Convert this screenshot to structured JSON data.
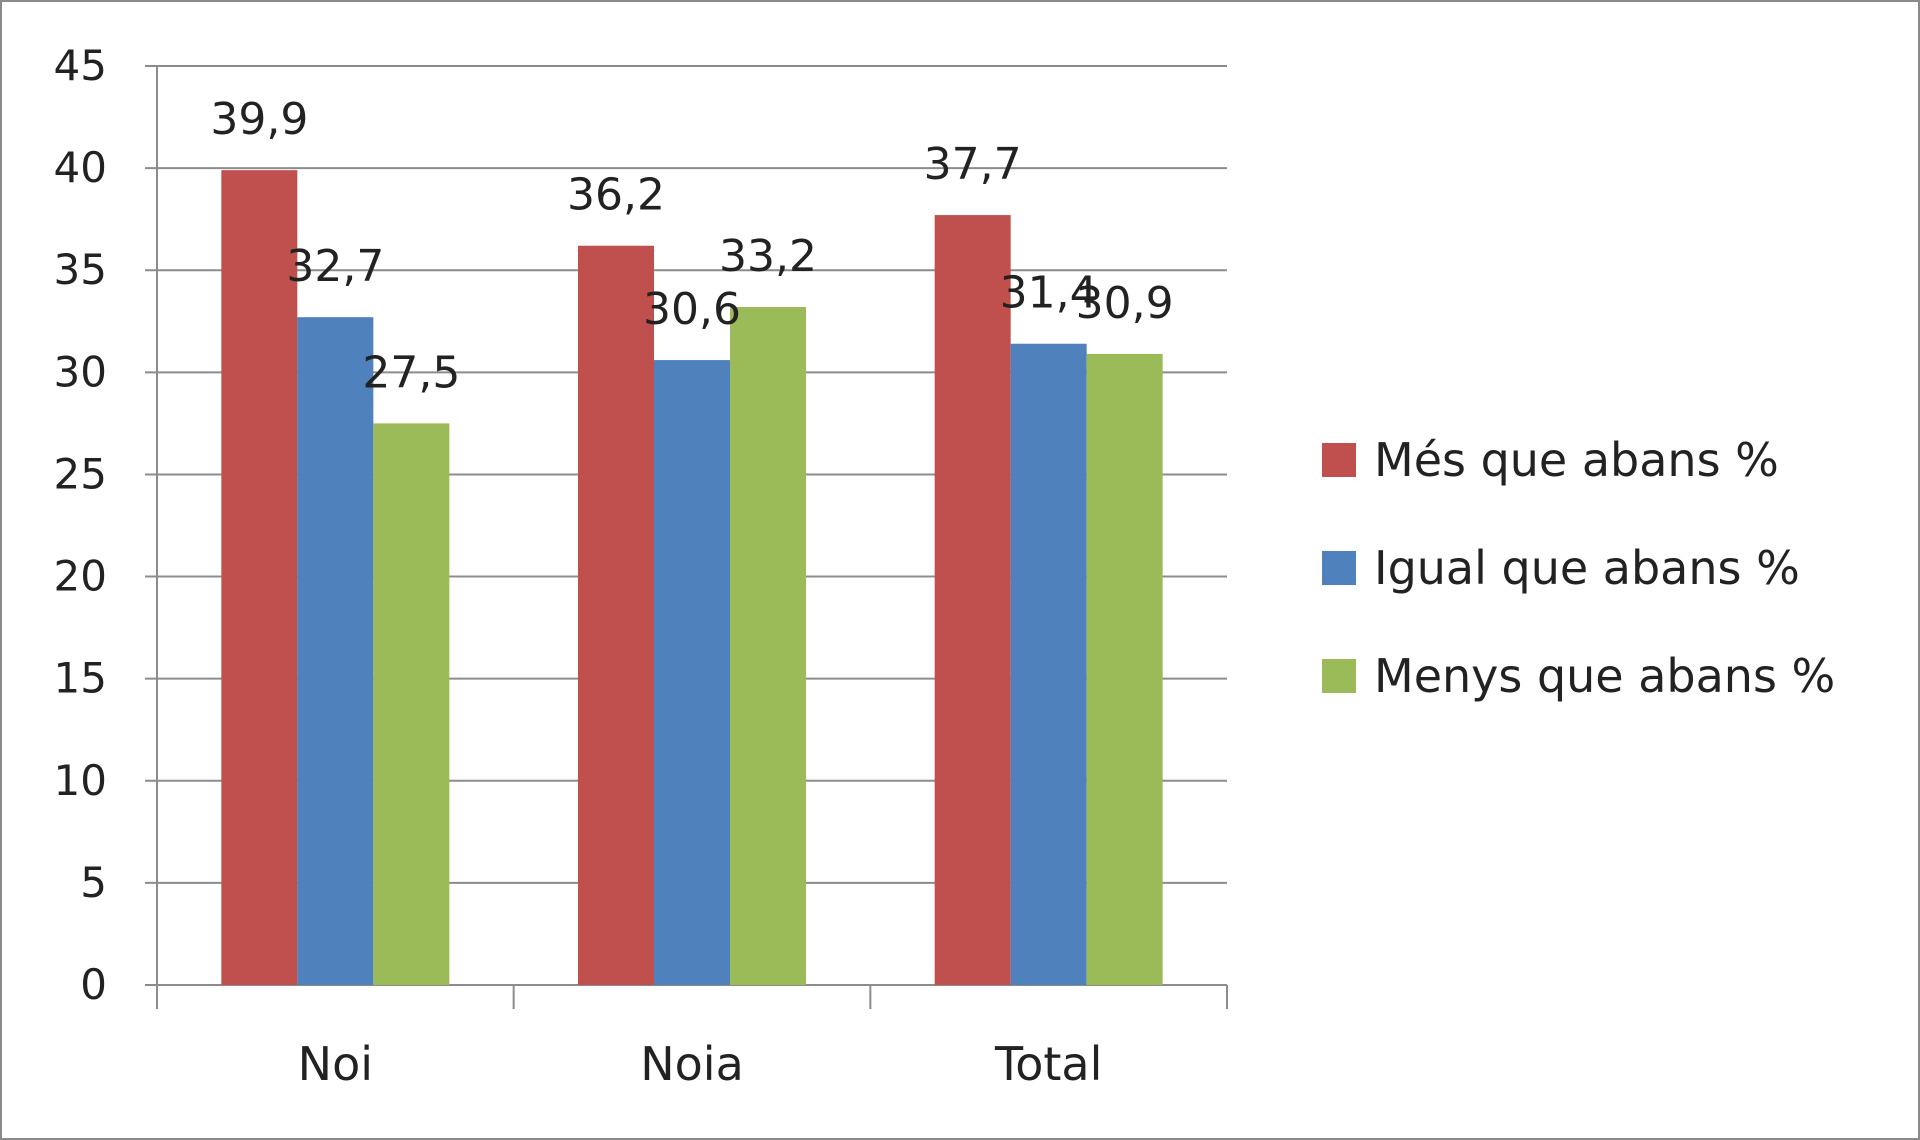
{
  "chart_data": {
    "type": "bar",
    "categories": [
      "Noi",
      "Noia",
      "Total"
    ],
    "series": [
      {
        "name": "Més  que abans %",
        "values": [
          39.9,
          36.2,
          37.7
        ],
        "labels": [
          "39,9",
          "36,2",
          "37,7"
        ],
        "color": "#c0504d"
      },
      {
        "name": "Igual que abans %",
        "values": [
          32.7,
          30.6,
          31.4
        ],
        "labels": [
          "32,7",
          "30,6",
          "31,4"
        ],
        "color": "#4f81bd"
      },
      {
        "name": "Menys que abans %",
        "values": [
          27.5,
          33.2,
          30.9
        ],
        "labels": [
          "27,5",
          "33,2",
          "30,9"
        ],
        "color": "#9bbb59"
      }
    ],
    "y_ticks": [
      "0",
      "5",
      "10",
      "15",
      "20",
      "25",
      "30",
      "35",
      "40",
      "45"
    ],
    "ylim": [
      0,
      45
    ],
    "grid": true,
    "legend_position": "right"
  }
}
